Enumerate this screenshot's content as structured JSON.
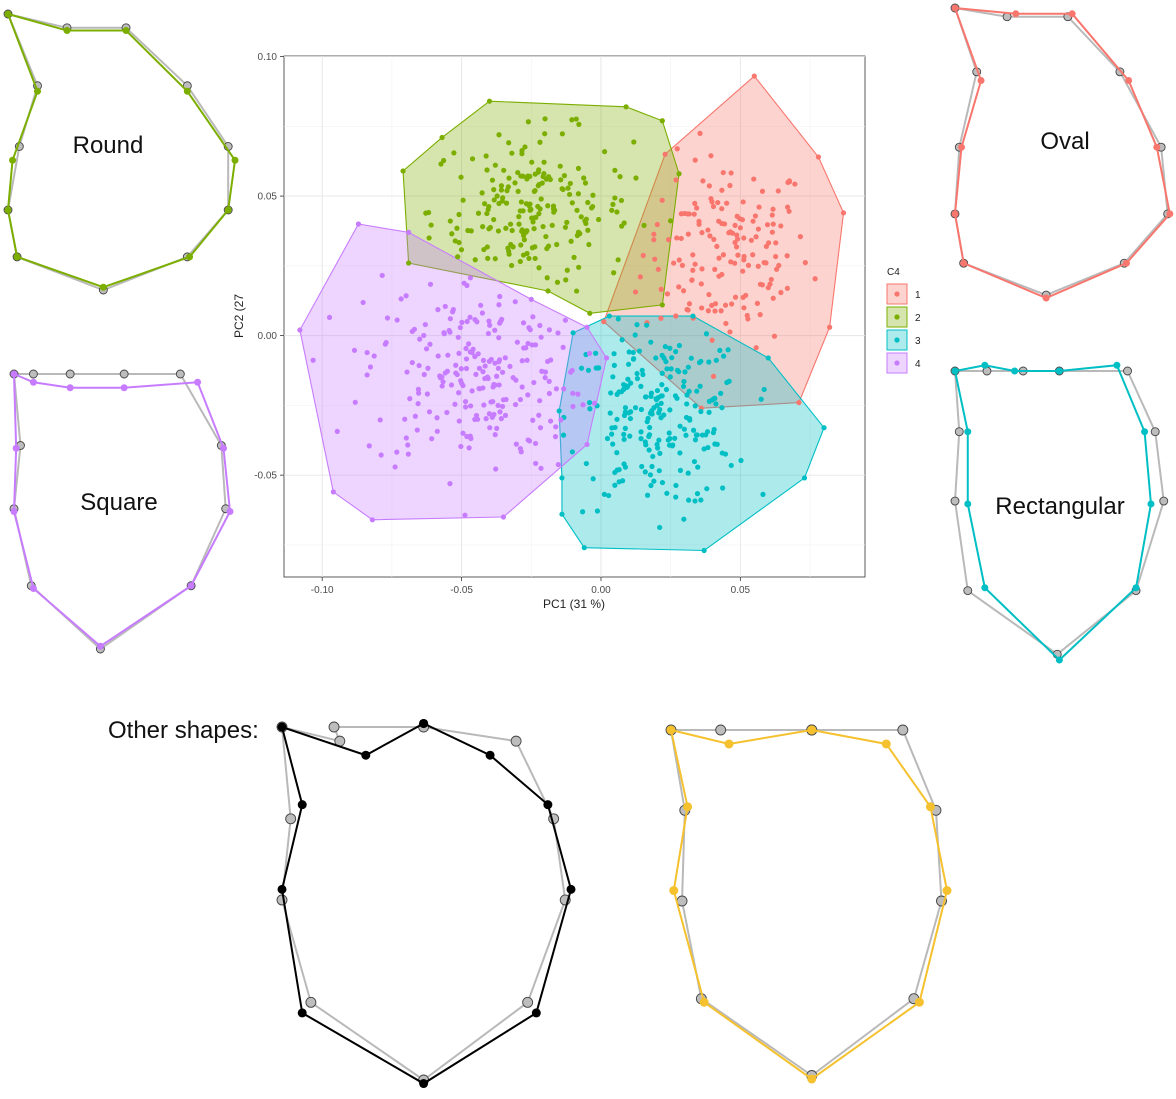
{
  "chart_data": {
    "type": "scatter",
    "xlabel": "PC1 (31 %)",
    "ylabel": "PC2 (27",
    "xlim": [
      -0.1137,
      0.0947
    ],
    "ylim": [
      -0.0865,
      0.1002
    ],
    "x_ticks": [
      "-0.10",
      "-0.05",
      "0.00",
      "0.05"
    ],
    "x_tick_values": [
      -0.1,
      -0.05,
      0.0,
      0.05
    ],
    "y_ticks": [
      "0.10",
      "0.05",
      "0.00",
      "-0.05"
    ],
    "y_tick_values": [
      0.1,
      0.05,
      0.0,
      -0.05
    ],
    "grid": true,
    "legend": {
      "title": "C4",
      "placement": "right",
      "entries": [
        "1",
        "2",
        "3",
        "4"
      ]
    },
    "series": [
      {
        "name": "1",
        "color": "#f8766d",
        "center": [
          0.045,
          0.03
        ],
        "spread": [
          0.015,
          0.017
        ],
        "count": 160,
        "hull": [
          [
            0.055,
            0.093
          ],
          [
            0.078,
            0.064
          ],
          [
            0.087,
            0.044
          ],
          [
            0.082,
            0.003
          ],
          [
            0.071,
            -0.024
          ],
          [
            0.036,
            -0.026
          ],
          [
            0.001,
            0.005
          ],
          [
            0.023,
            0.065
          ]
        ]
      },
      {
        "name": "2",
        "color": "#7cae00",
        "center": [
          -0.025,
          0.045
        ],
        "spread": [
          0.018,
          0.014
        ],
        "count": 200,
        "hull": [
          [
            -0.04,
            0.084
          ],
          [
            0.009,
            0.082
          ],
          [
            0.022,
            0.077
          ],
          [
            0.028,
            0.058
          ],
          [
            0.022,
            0.011
          ],
          [
            -0.004,
            0.008
          ],
          [
            -0.019,
            0.016
          ],
          [
            -0.069,
            0.026
          ],
          [
            -0.071,
            0.059
          ],
          [
            -0.057,
            0.071
          ]
        ]
      },
      {
        "name": "3",
        "color": "#00bfc4",
        "center": [
          0.02,
          -0.03
        ],
        "spread": [
          0.016,
          0.016
        ],
        "count": 220,
        "hull": [
          [
            0.003,
            0.007
          ],
          [
            0.033,
            0.007
          ],
          [
            0.06,
            -0.008
          ],
          [
            0.08,
            -0.033
          ],
          [
            0.073,
            -0.051
          ],
          [
            0.037,
            -0.077
          ],
          [
            -0.006,
            -0.076
          ],
          [
            -0.014,
            -0.064
          ],
          [
            -0.014,
            -0.051
          ],
          [
            -0.015,
            -0.027
          ],
          [
            -0.01,
            0.001
          ]
        ]
      },
      {
        "name": "4",
        "color": "#c77cff",
        "center": [
          -0.045,
          -0.013
        ],
        "spread": [
          0.02,
          0.018
        ],
        "count": 230,
        "hull": [
          [
            -0.087,
            0.04
          ],
          [
            -0.069,
            0.037
          ],
          [
            -0.025,
            0.013
          ],
          [
            -0.005,
            0.003
          ],
          [
            0.002,
            -0.008
          ],
          [
            -0.005,
            -0.039
          ],
          [
            -0.035,
            -0.065
          ],
          [
            -0.082,
            -0.066
          ],
          [
            -0.096,
            -0.056
          ],
          [
            -0.108,
            0.002
          ]
        ]
      }
    ]
  },
  "shape_labels": {
    "round": "Round",
    "oval": "Oval",
    "square": "Square",
    "rectangular": "Rectangular",
    "other": "Other shapes:"
  },
  "shapes": {
    "round": {
      "color": "#7cae00",
      "ref": [
        [
          0.0,
          0.0
        ],
        [
          0.52,
          0.05
        ],
        [
          0.79,
          0.26
        ],
        [
          0.97,
          0.48
        ],
        [
          0.97,
          0.71
        ],
        [
          0.79,
          0.88
        ],
        [
          0.42,
          1.0
        ],
        [
          0.04,
          0.88
        ],
        [
          0.0,
          0.71
        ],
        [
          0.05,
          0.48
        ],
        [
          0.13,
          0.26
        ],
        [
          0.26,
          0.05
        ]
      ],
      "shape": [
        [
          0.0,
          0.0
        ],
        [
          0.52,
          0.06
        ],
        [
          0.79,
          0.28
        ],
        [
          1.0,
          0.53
        ],
        [
          0.97,
          0.71
        ],
        [
          0.8,
          0.88
        ],
        [
          0.42,
          0.99
        ],
        [
          0.04,
          0.88
        ],
        [
          0.0,
          0.71
        ],
        [
          0.02,
          0.53
        ],
        [
          0.13,
          0.28
        ],
        [
          0.26,
          0.06
        ]
      ]
    },
    "oval": {
      "color": "#f8766d",
      "ref": [
        [
          0.0,
          0.0
        ],
        [
          0.52,
          0.03
        ],
        [
          0.76,
          0.22
        ],
        [
          0.95,
          0.48
        ],
        [
          0.98,
          0.71
        ],
        [
          0.78,
          0.88
        ],
        [
          0.42,
          0.99
        ],
        [
          0.04,
          0.88
        ],
        [
          0.0,
          0.71
        ],
        [
          0.02,
          0.48
        ],
        [
          0.1,
          0.22
        ],
        [
          0.24,
          0.03
        ]
      ],
      "shape": [
        [
          0.0,
          0.0
        ],
        [
          0.54,
          0.02
        ],
        [
          0.8,
          0.25
        ],
        [
          0.93,
          0.48
        ],
        [
          0.99,
          0.71
        ],
        [
          0.79,
          0.88
        ],
        [
          0.42,
          1.0
        ],
        [
          0.04,
          0.88
        ],
        [
          0.0,
          0.71
        ],
        [
          0.03,
          0.48
        ],
        [
          0.12,
          0.25
        ],
        [
          0.28,
          0.02
        ]
      ]
    },
    "square": {
      "color": "#c77cff",
      "ref": [
        [
          0.0,
          0.0
        ],
        [
          0.51,
          0.0
        ],
        [
          0.77,
          0.0
        ],
        [
          0.96,
          0.26
        ],
        [
          0.98,
          0.49
        ],
        [
          0.82,
          0.77
        ],
        [
          0.4,
          1.0
        ],
        [
          0.08,
          0.77
        ],
        [
          0.0,
          0.49
        ],
        [
          0.03,
          0.26
        ],
        [
          0.09,
          0.0
        ],
        [
          0.26,
          0.0
        ]
      ],
      "shape": [
        [
          0.0,
          0.0
        ],
        [
          0.51,
          0.05
        ],
        [
          0.85,
          0.03
        ],
        [
          0.97,
          0.27
        ],
        [
          1.0,
          0.5
        ],
        [
          0.82,
          0.77
        ],
        [
          0.4,
          0.99
        ],
        [
          0.09,
          0.78
        ],
        [
          0.0,
          0.5
        ],
        [
          0.01,
          0.27
        ],
        [
          0.09,
          0.03
        ],
        [
          0.26,
          0.05
        ]
      ]
    },
    "rectangular": {
      "color": "#00bfc4",
      "ref": [
        [
          0.0,
          0.0
        ],
        [
          0.49,
          0.0
        ],
        [
          0.81,
          0.0
        ],
        [
          0.94,
          0.21
        ],
        [
          0.98,
          0.45
        ],
        [
          0.85,
          0.76
        ],
        [
          0.48,
          0.98
        ],
        [
          0.06,
          0.76
        ],
        [
          0.0,
          0.45
        ],
        [
          0.02,
          0.21
        ],
        [
          0.15,
          0.0
        ],
        [
          0.32,
          0.0
        ]
      ],
      "shape": [
        [
          0.0,
          0.0
        ],
        [
          0.49,
          0.0
        ],
        [
          0.76,
          -0.02
        ],
        [
          0.89,
          0.21
        ],
        [
          0.92,
          0.46
        ],
        [
          0.85,
          0.75
        ],
        [
          0.49,
          1.0
        ],
        [
          0.14,
          0.75
        ],
        [
          0.06,
          0.46
        ],
        [
          0.06,
          0.21
        ],
        [
          0.14,
          -0.02
        ],
        [
          0.28,
          0.0
        ]
      ]
    },
    "other_black": {
      "color": "#000000",
      "ref": [
        [
          0.0,
          0.0
        ],
        [
          0.49,
          0.0
        ],
        [
          0.81,
          0.04
        ],
        [
          0.94,
          0.26
        ],
        [
          0.98,
          0.49
        ],
        [
          0.85,
          0.78
        ],
        [
          0.49,
          1.0
        ],
        [
          0.1,
          0.78
        ],
        [
          0.0,
          0.49
        ],
        [
          0.03,
          0.26
        ],
        [
          0.2,
          0.04
        ],
        [
          0.18,
          0.0
        ]
      ],
      "shape": [
        [
          0.0,
          0.0
        ],
        [
          0.49,
          -0.01
        ],
        [
          0.72,
          0.08
        ],
        [
          0.92,
          0.22
        ],
        [
          1.0,
          0.46
        ],
        [
          0.88,
          0.81
        ],
        [
          0.49,
          1.01
        ],
        [
          0.07,
          0.81
        ],
        [
          0.0,
          0.46
        ],
        [
          0.07,
          0.22
        ],
        [
          0.29,
          0.08
        ],
        [
          0.49,
          -0.01
        ]
      ]
    },
    "other_yellow": {
      "color": "#f5c12e",
      "ref": [
        [
          0.0,
          0.0
        ],
        [
          0.51,
          0.0
        ],
        [
          0.84,
          0.0
        ],
        [
          0.96,
          0.23
        ],
        [
          0.98,
          0.49
        ],
        [
          0.88,
          0.77
        ],
        [
          0.51,
          0.99
        ],
        [
          0.11,
          0.77
        ],
        [
          0.04,
          0.49
        ],
        [
          0.05,
          0.23
        ],
        [
          0.18,
          0.0
        ],
        [
          0.51,
          0.0
        ]
      ],
      "shape": [
        [
          0.0,
          0.0
        ],
        [
          0.51,
          0.0
        ],
        [
          0.78,
          0.04
        ],
        [
          0.94,
          0.22
        ],
        [
          1.0,
          0.46
        ],
        [
          0.9,
          0.78
        ],
        [
          0.51,
          1.0
        ],
        [
          0.12,
          0.78
        ],
        [
          0.01,
          0.46
        ],
        [
          0.06,
          0.22
        ],
        [
          0.21,
          0.04
        ],
        [
          0.51,
          0.0
        ]
      ]
    }
  }
}
